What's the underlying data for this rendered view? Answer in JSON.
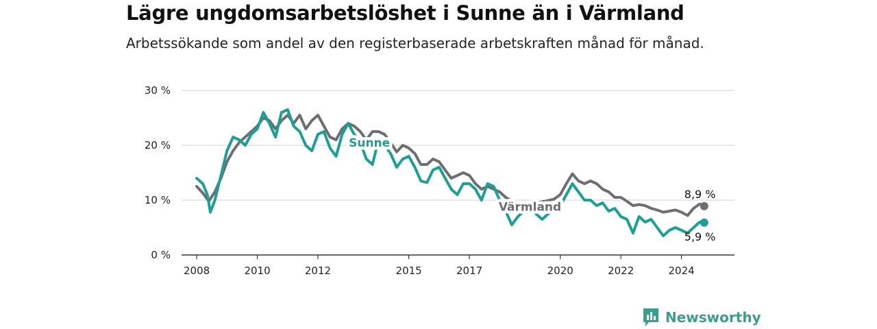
{
  "title": "Lägre ungdomsarbetslöshet i Sunne än i Värmland",
  "subtitle": "Arbetssökande som andel av den registerbaserade arbetskraften månad för månad.",
  "brand": {
    "name": "Newsworthy",
    "logo_icon": "bar-chart-speech-icon",
    "color": "#3a9e8f"
  },
  "chart_data": {
    "type": "line",
    "xlabel": "",
    "ylabel": "",
    "ylim": [
      0,
      30
    ],
    "xlim": [
      2007.5,
      2025.75
    ],
    "yticks": [
      0,
      10,
      20,
      30
    ],
    "ytick_labels": [
      "0 %",
      "10 %",
      "20 %",
      "30 %"
    ],
    "xticks": [
      2008,
      2010,
      2012,
      2015,
      2017,
      2020,
      2022,
      2024
    ],
    "xtick_labels": [
      "2008",
      "2010",
      "2012",
      "2015",
      "2017",
      "2020",
      "2022",
      "2024"
    ],
    "grid": true,
    "legend": "inline labels",
    "series": [
      {
        "name": "Värmland",
        "color": "#6e6d73",
        "end_label": "8,9 %",
        "points": [
          [
            2008.0,
            12.5
          ],
          [
            2008.2,
            11.3
          ],
          [
            2008.4,
            9.8
          ],
          [
            2008.6,
            11.5
          ],
          [
            2008.8,
            14.0
          ],
          [
            2009.0,
            17.0
          ],
          [
            2009.2,
            19.0
          ],
          [
            2009.4,
            20.5
          ],
          [
            2009.6,
            21.5
          ],
          [
            2009.8,
            22.5
          ],
          [
            2010.0,
            23.5
          ],
          [
            2010.2,
            25.0
          ],
          [
            2010.4,
            24.5
          ],
          [
            2010.6,
            23.0
          ],
          [
            2010.8,
            24.5
          ],
          [
            2011.0,
            25.5
          ],
          [
            2011.2,
            24.0
          ],
          [
            2011.4,
            25.5
          ],
          [
            2011.6,
            23.0
          ],
          [
            2011.8,
            24.5
          ],
          [
            2012.0,
            25.5
          ],
          [
            2012.2,
            23.5
          ],
          [
            2012.4,
            21.5
          ],
          [
            2012.6,
            21.0
          ],
          [
            2012.8,
            23.0
          ],
          [
            2013.0,
            24.0
          ],
          [
            2013.2,
            23.5
          ],
          [
            2013.4,
            22.5
          ],
          [
            2013.6,
            21.0
          ],
          [
            2013.8,
            22.5
          ],
          [
            2014.0,
            22.5
          ],
          [
            2014.2,
            22.0
          ],
          [
            2014.4,
            20.5
          ],
          [
            2014.6,
            18.8
          ],
          [
            2014.8,
            20.0
          ],
          [
            2015.0,
            19.5
          ],
          [
            2015.2,
            18.5
          ],
          [
            2015.4,
            16.5
          ],
          [
            2015.6,
            16.5
          ],
          [
            2015.8,
            17.5
          ],
          [
            2016.0,
            17.0
          ],
          [
            2016.2,
            15.5
          ],
          [
            2016.4,
            14.0
          ],
          [
            2016.6,
            14.5
          ],
          [
            2016.8,
            15.0
          ],
          [
            2017.0,
            14.5
          ],
          [
            2017.2,
            13.0
          ],
          [
            2017.4,
            12.0
          ],
          [
            2017.6,
            12.5
          ],
          [
            2017.8,
            12.0
          ],
          [
            2018.0,
            11.5
          ],
          [
            2018.2,
            10.5
          ],
          [
            2018.5,
            9.5
          ],
          [
            2018.8,
            9.0
          ],
          [
            2019.0,
            9.0
          ],
          [
            2019.2,
            9.5
          ],
          [
            2019.5,
            9.8
          ],
          [
            2019.8,
            10.2
          ],
          [
            2020.0,
            11.0
          ],
          [
            2020.2,
            13.0
          ],
          [
            2020.4,
            14.8
          ],
          [
            2020.6,
            13.5
          ],
          [
            2020.8,
            13.0
          ],
          [
            2021.0,
            13.5
          ],
          [
            2021.2,
            13.0
          ],
          [
            2021.4,
            12.0
          ],
          [
            2021.6,
            11.5
          ],
          [
            2021.8,
            10.5
          ],
          [
            2022.0,
            10.5
          ],
          [
            2022.2,
            9.8
          ],
          [
            2022.4,
            9.0
          ],
          [
            2022.6,
            9.2
          ],
          [
            2022.8,
            9.0
          ],
          [
            2023.0,
            8.5
          ],
          [
            2023.2,
            8.2
          ],
          [
            2023.4,
            7.8
          ],
          [
            2023.6,
            8.0
          ],
          [
            2023.8,
            8.2
          ],
          [
            2024.0,
            7.8
          ],
          [
            2024.2,
            7.2
          ],
          [
            2024.4,
            8.5
          ],
          [
            2024.6,
            9.3
          ],
          [
            2024.75,
            8.9
          ]
        ]
      },
      {
        "name": "Sunne",
        "color": "#1aa094",
        "end_label": "5,9 %",
        "points": [
          [
            2008.0,
            14.0
          ],
          [
            2008.2,
            13.0
          ],
          [
            2008.35,
            11.0
          ],
          [
            2008.45,
            7.8
          ],
          [
            2008.6,
            10.0
          ],
          [
            2008.8,
            14.5
          ],
          [
            2009.0,
            19.0
          ],
          [
            2009.2,
            21.5
          ],
          [
            2009.4,
            21.0
          ],
          [
            2009.6,
            20.0
          ],
          [
            2009.8,
            22.0
          ],
          [
            2010.0,
            23.0
          ],
          [
            2010.2,
            26.0
          ],
          [
            2010.4,
            24.0
          ],
          [
            2010.6,
            21.5
          ],
          [
            2010.8,
            26.0
          ],
          [
            2011.0,
            26.5
          ],
          [
            2011.2,
            23.5
          ],
          [
            2011.4,
            22.5
          ],
          [
            2011.6,
            20.0
          ],
          [
            2011.8,
            19.0
          ],
          [
            2012.0,
            22.0
          ],
          [
            2012.2,
            22.5
          ],
          [
            2012.4,
            19.5
          ],
          [
            2012.6,
            18.0
          ],
          [
            2012.8,
            22.0
          ],
          [
            2013.0,
            24.0
          ],
          [
            2013.2,
            22.0
          ],
          [
            2013.4,
            20.5
          ],
          [
            2013.6,
            17.5
          ],
          [
            2013.8,
            16.5
          ],
          [
            2014.0,
            21.0
          ],
          [
            2014.2,
            20.0
          ],
          [
            2014.4,
            18.5
          ],
          [
            2014.6,
            16.0
          ],
          [
            2014.8,
            17.5
          ],
          [
            2015.0,
            18.0
          ],
          [
            2015.2,
            16.0
          ],
          [
            2015.4,
            13.5
          ],
          [
            2015.6,
            13.2
          ],
          [
            2015.8,
            15.5
          ],
          [
            2016.0,
            16.0
          ],
          [
            2016.2,
            14.0
          ],
          [
            2016.4,
            12.0
          ],
          [
            2016.6,
            11.0
          ],
          [
            2016.8,
            13.0
          ],
          [
            2017.0,
            13.0
          ],
          [
            2017.2,
            12.0
          ],
          [
            2017.4,
            10.0
          ],
          [
            2017.6,
            13.0
          ],
          [
            2017.8,
            12.5
          ],
          [
            2018.0,
            10.0
          ],
          [
            2018.2,
            8.0
          ],
          [
            2018.4,
            5.5
          ],
          [
            2018.6,
            7.0
          ],
          [
            2018.8,
            8.0
          ],
          [
            2019.0,
            8.5
          ],
          [
            2019.2,
            7.5
          ],
          [
            2019.4,
            6.5
          ],
          [
            2019.6,
            7.5
          ],
          [
            2019.8,
            8.5
          ],
          [
            2020.0,
            9.0
          ],
          [
            2020.2,
            11.0
          ],
          [
            2020.4,
            13.0
          ],
          [
            2020.6,
            11.5
          ],
          [
            2020.8,
            10.0
          ],
          [
            2021.0,
            10.0
          ],
          [
            2021.2,
            9.0
          ],
          [
            2021.4,
            9.5
          ],
          [
            2021.6,
            8.0
          ],
          [
            2021.8,
            8.5
          ],
          [
            2022.0,
            7.0
          ],
          [
            2022.2,
            6.5
          ],
          [
            2022.4,
            4.0
          ],
          [
            2022.6,
            7.0
          ],
          [
            2022.8,
            6.0
          ],
          [
            2023.0,
            6.5
          ],
          [
            2023.2,
            5.0
          ],
          [
            2023.4,
            3.5
          ],
          [
            2023.6,
            4.5
          ],
          [
            2023.8,
            5.0
          ],
          [
            2024.0,
            4.5
          ],
          [
            2024.2,
            4.0
          ],
          [
            2024.4,
            5.0
          ],
          [
            2024.6,
            6.0
          ],
          [
            2024.75,
            5.9
          ]
        ]
      }
    ]
  }
}
